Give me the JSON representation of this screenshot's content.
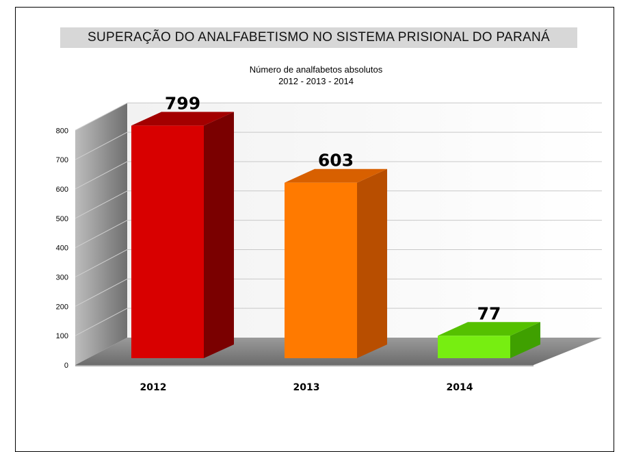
{
  "chart_data": {
    "type": "bar",
    "title": "SUPERAÇÃO DO ANALFABETISMO NO SISTEMA PRISIONAL DO PARANÁ",
    "subtitle_line1": "Número de analfabetos absolutos",
    "subtitle_line2": "2012 - 2013 - 2014",
    "categories": [
      "2012",
      "2013",
      "2014"
    ],
    "values": [
      799,
      603,
      77
    ],
    "data_labels": [
      "799",
      "603",
      "77"
    ],
    "y_ticks": [
      "0",
      "100",
      "200",
      "300",
      "400",
      "500",
      "600",
      "700",
      "800"
    ],
    "ylim": [
      0,
      800
    ],
    "xlabel": "",
    "ylabel": "",
    "grid": true,
    "legend": "none",
    "bar_colors": [
      {
        "front": "#d80000",
        "side": "#7a0000",
        "top": "#a30000"
      },
      {
        "front": "#ff7a00",
        "side": "#b84e00",
        "top": "#d86000"
      },
      {
        "front": "#77ee11",
        "side": "#3fa000",
        "top": "#55c000"
      }
    ]
  }
}
